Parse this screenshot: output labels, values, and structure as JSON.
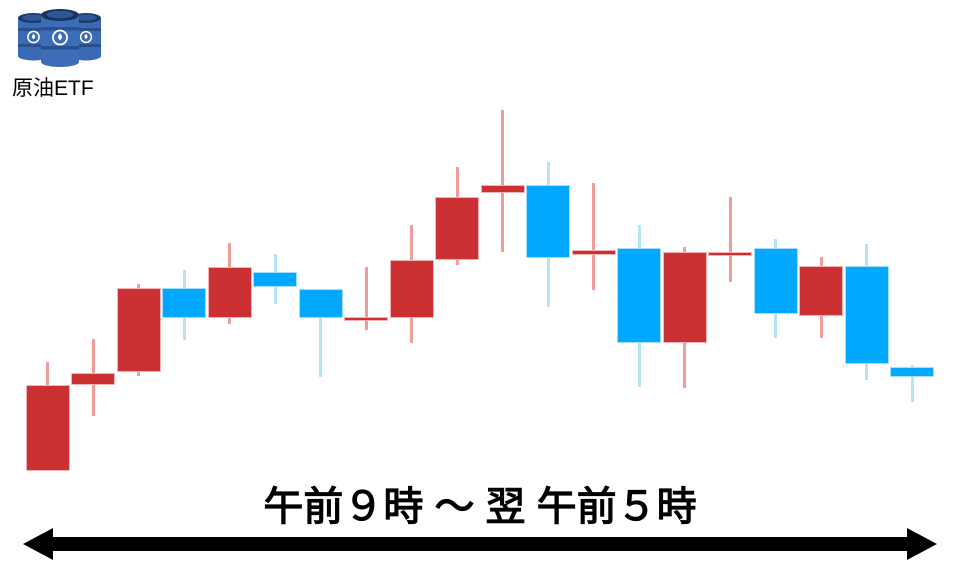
{
  "header": {
    "icon_label": "原油ETF"
  },
  "icons": {
    "oil_barrels": "oil-barrels-icon",
    "time_range_arrow": "double-headed-arrow"
  },
  "footer": {
    "time_range_label": "午前９時 ～ 翌 午前５時"
  },
  "colors": {
    "up_body": "#cb3133",
    "up_border": "#f2b4b4",
    "up_wick": "#f29b9b",
    "down_body": "#00a9ff",
    "down_border": "#a6ddf8",
    "down_wick": "#b5e3f7",
    "arrow": "#000000",
    "background": "#ffffff"
  },
  "chart_data": {
    "type": "candlestick",
    "title": "原油ETF",
    "xlabel": "午前９時 ～ 翌 午前５時",
    "ylabel": "",
    "ylim": [
      0,
      100
    ],
    "units": "relative price (no axis shown)",
    "grid": false,
    "legend": false,
    "up_means": "red candle = price up (陽線)",
    "down_means": "blue candle = price down (陰線)",
    "candles": [
      {
        "o": 2.4,
        "h": 31.1,
        "l": 2.4,
        "c": 25.0,
        "dir": "up"
      },
      {
        "o": 25.0,
        "h": 37.1,
        "l": 16.8,
        "c": 28.2,
        "dir": "up"
      },
      {
        "o": 28.4,
        "h": 51.6,
        "l": 27.4,
        "c": 50.5,
        "dir": "up"
      },
      {
        "o": 50.5,
        "h": 55.3,
        "l": 36.8,
        "c": 42.6,
        "dir": "down"
      },
      {
        "o": 42.6,
        "h": 62.4,
        "l": 41.1,
        "c": 56.1,
        "dir": "up"
      },
      {
        "o": 54.7,
        "h": 59.5,
        "l": 46.3,
        "c": 50.8,
        "dir": "down"
      },
      {
        "o": 50.3,
        "h": 50.3,
        "l": 27.1,
        "c": 42.6,
        "dir": "down"
      },
      {
        "o": 42.1,
        "h": 56.1,
        "l": 39.5,
        "c": 42.9,
        "dir": "up"
      },
      {
        "o": 42.6,
        "h": 67.1,
        "l": 36.1,
        "c": 57.9,
        "dir": "up"
      },
      {
        "o": 57.9,
        "h": 82.4,
        "l": 56.6,
        "c": 74.5,
        "dir": "up"
      },
      {
        "o": 75.5,
        "h": 97.4,
        "l": 60.0,
        "c": 77.6,
        "dir": "up"
      },
      {
        "o": 77.6,
        "h": 83.7,
        "l": 45.5,
        "c": 58.4,
        "dir": "down"
      },
      {
        "o": 59.2,
        "h": 78.2,
        "l": 50.0,
        "c": 60.5,
        "dir": "up"
      },
      {
        "o": 61.1,
        "h": 67.1,
        "l": 24.5,
        "c": 36.1,
        "dir": "down"
      },
      {
        "o": 36.1,
        "h": 61.3,
        "l": 24.2,
        "c": 60.0,
        "dir": "up"
      },
      {
        "o": 58.9,
        "h": 74.5,
        "l": 52.1,
        "c": 60.0,
        "dir": "up"
      },
      {
        "o": 61.1,
        "h": 63.4,
        "l": 37.4,
        "c": 43.7,
        "dir": "down"
      },
      {
        "o": 43.2,
        "h": 58.7,
        "l": 37.4,
        "c": 56.3,
        "dir": "up"
      },
      {
        "o": 56.3,
        "h": 62.1,
        "l": 26.3,
        "c": 30.5,
        "dir": "down"
      },
      {
        "o": 29.7,
        "h": 30.3,
        "l": 20.5,
        "c": 27.1,
        "dir": "down"
      }
    ]
  }
}
